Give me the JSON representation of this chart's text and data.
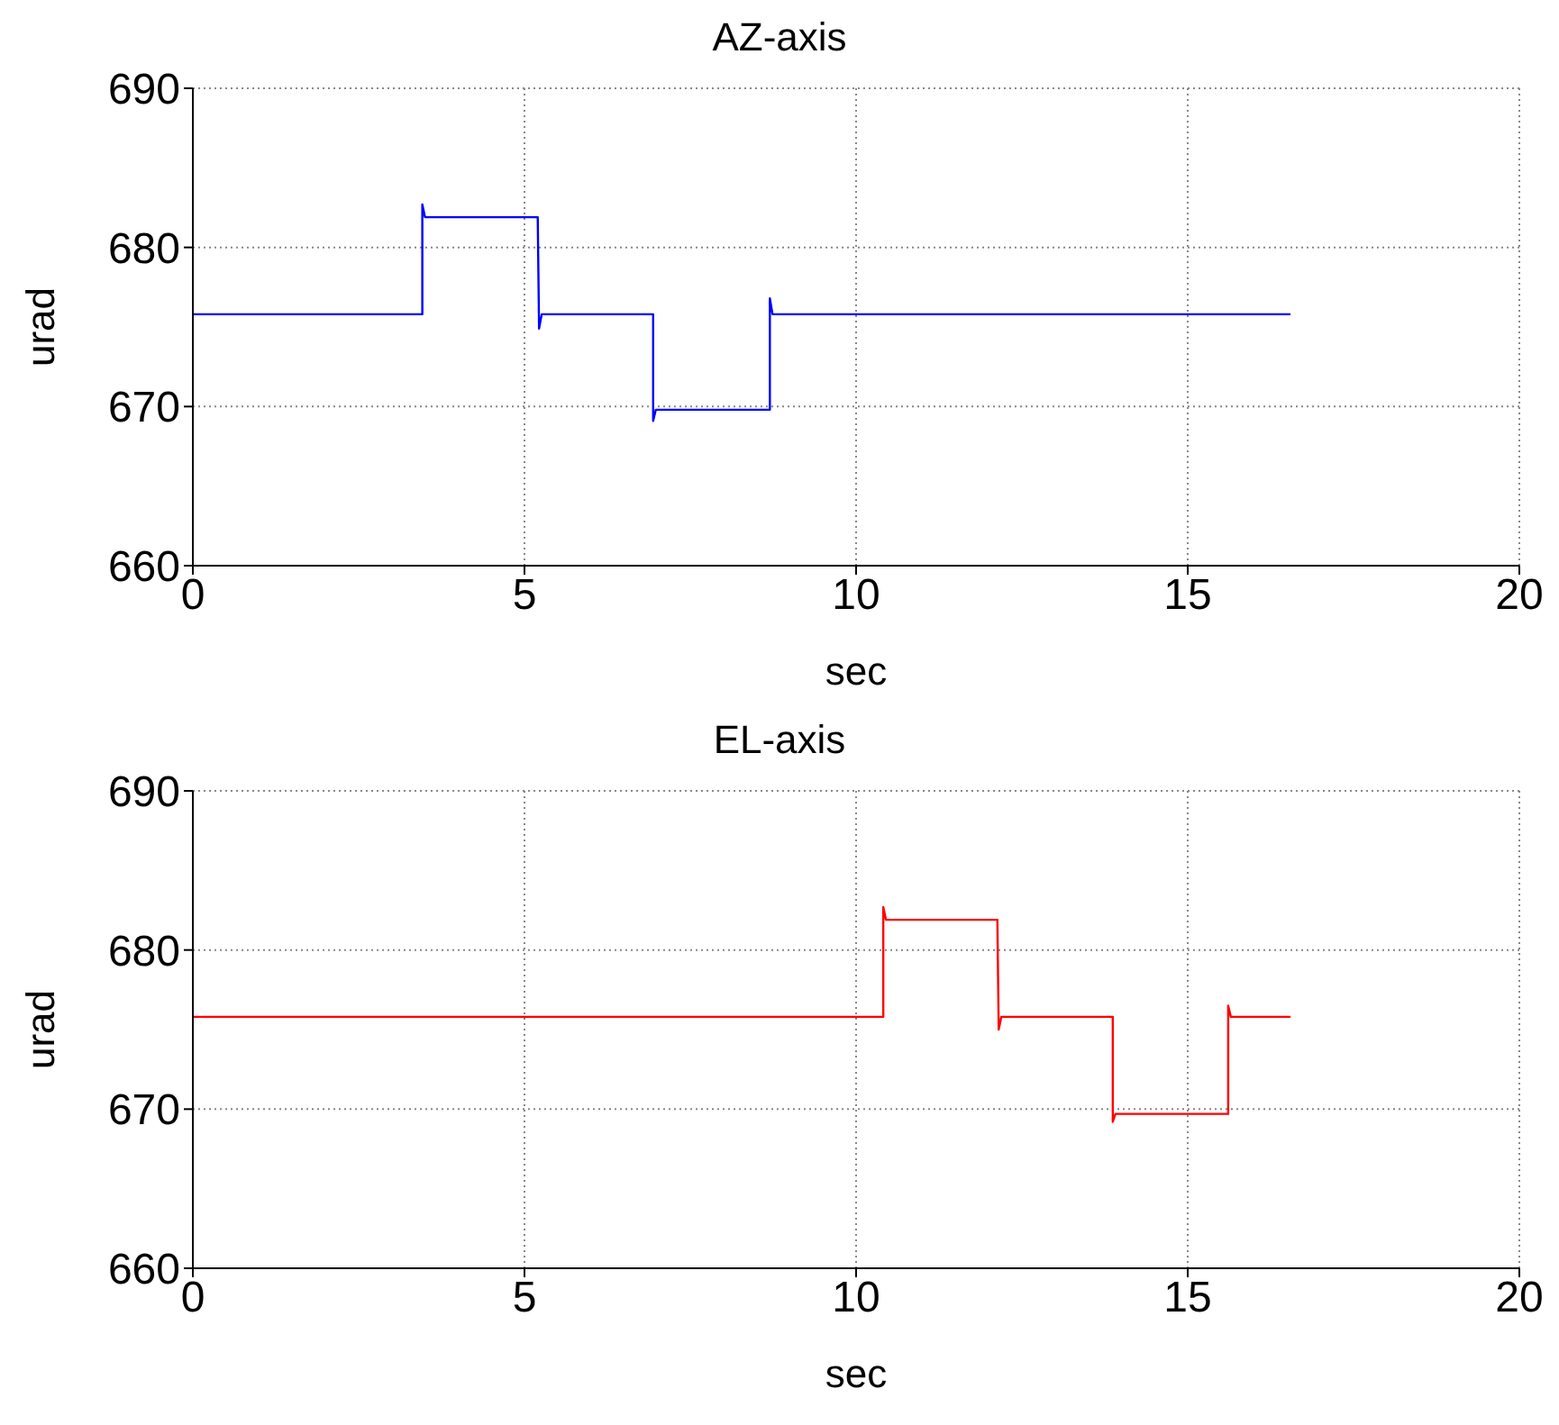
{
  "chart_data": [
    {
      "type": "line",
      "title": "AZ-axis",
      "xlabel": "sec",
      "ylabel": "urad",
      "xlim": [
        0,
        20
      ],
      "xticks": [
        0,
        5,
        10,
        15,
        20
      ],
      "ylim": [
        660,
        690
      ],
      "yticks": [
        660,
        670,
        680,
        690
      ],
      "grid": true,
      "series": [
        {
          "color": "#0000ff",
          "x": [
            0,
            3.46,
            3.46,
            3.5,
            5.2,
            5.22,
            5.26,
            6.94,
            6.94,
            6.98,
            8.7,
            8.7,
            8.74,
            16.55
          ],
          "values": [
            675.8,
            675.8,
            682.7,
            681.9,
            681.9,
            674.9,
            675.8,
            675.8,
            669.1,
            669.8,
            669.8,
            676.8,
            675.8,
            675.8
          ]
        }
      ]
    },
    {
      "type": "line",
      "title": "EL-axis",
      "xlabel": "sec",
      "ylabel": "urad",
      "xlim": [
        0,
        20
      ],
      "xticks": [
        0,
        5,
        10,
        15,
        20
      ],
      "ylim": [
        660,
        690
      ],
      "yticks": [
        660,
        670,
        680,
        690
      ],
      "grid": true,
      "series": [
        {
          "color": "#ff0000",
          "x": [
            0,
            10.41,
            10.41,
            10.45,
            12.13,
            12.15,
            12.19,
            13.87,
            13.87,
            13.91,
            15.61,
            15.61,
            15.65,
            16.55
          ],
          "values": [
            675.8,
            675.8,
            682.7,
            681.9,
            681.9,
            675.0,
            675.8,
            675.8,
            669.2,
            669.7,
            669.7,
            676.5,
            675.8,
            675.8
          ]
        }
      ]
    }
  ]
}
